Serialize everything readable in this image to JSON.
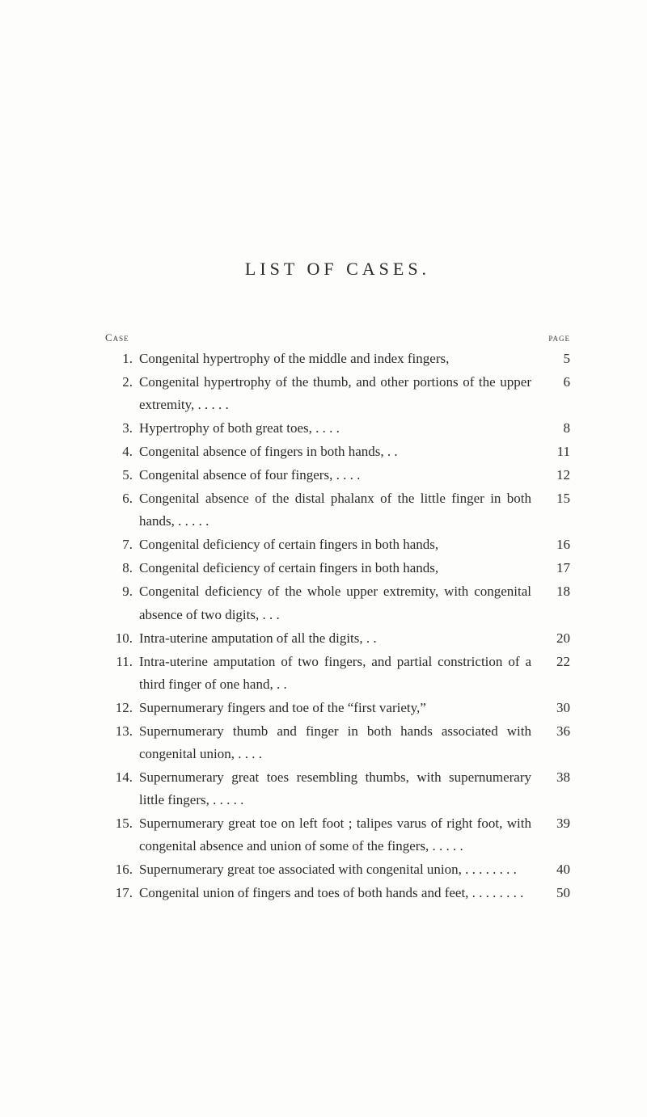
{
  "title": "LIST OF CASES.",
  "header": {
    "left": "Case",
    "right": "page"
  },
  "entries": [
    {
      "n": "1.",
      "text": "Congenital hypertrophy of the middle and index fingers,",
      "page": "5"
    },
    {
      "n": "2.",
      "text": "Congenital hypertrophy of the thumb, and other portions of the upper extremity,   .   .   .   .   .",
      "page": "6"
    },
    {
      "n": "3.",
      "text": "Hypertrophy of both great toes,   .   .   .   .",
      "page": "8"
    },
    {
      "n": "4.",
      "text": "Congenital absence of fingers in both hands,   .   .",
      "page": "11"
    },
    {
      "n": "5.",
      "text": "Congenital absence of four fingers,   .   .   .   .",
      "page": "12"
    },
    {
      "n": "6.",
      "text": "Congenital absence of the distal phalanx of the little finger in both hands,   .   .   .   .   .",
      "page": "15"
    },
    {
      "n": "7.",
      "text": "Congenital deficiency of certain fingers in both hands,",
      "page": "16"
    },
    {
      "n": "8.",
      "text": "Congenital deficiency of certain fingers in both hands,",
      "page": "17"
    },
    {
      "n": "9.",
      "text": "Congenital deficiency of the whole upper extremity, with congenital absence of two digits,   .   .   .",
      "page": "18"
    },
    {
      "n": "10.",
      "text": "Intra-uterine amputation of all the digits,   .   .",
      "page": "20"
    },
    {
      "n": "11.",
      "text": "Intra-uterine amputation of two fingers, and partial constriction of a third finger of one hand,   .   .",
      "page": "22"
    },
    {
      "n": "12.",
      "text": "Supernumerary fingers and toe of the “first variety,”",
      "page": "30"
    },
    {
      "n": "13.",
      "text": "Supernumerary thumb and finger in both hands associated with congenital union,   .   .   .   .",
      "page": "36"
    },
    {
      "n": "14.",
      "text": "Supernumerary great toes resembling thumbs, with supernumerary little fingers,   .   .   .   .   .",
      "page": "38"
    },
    {
      "n": "15.",
      "text": "Supernumerary great toe on left foot ; talipes varus of right foot, with congenital absence and union of some of the fingers,   .   .   .   .   .",
      "page": "39"
    },
    {
      "n": "16.",
      "text": "Supernumerary great toe associated with congenital union,   .   .   .   .   .   .   .   .",
      "page": "40"
    },
    {
      "n": "17.",
      "text": "Congenital union of fingers and toes of both hands and feet,   .   .   .   .   .   .   .   .",
      "page": "50"
    }
  ],
  "style": {
    "page_bg": "#fdfdfb",
    "text_color": "#2a2a2a",
    "title_fontsize": 22,
    "body_fontsize": 17,
    "header_fontsize": 13
  }
}
